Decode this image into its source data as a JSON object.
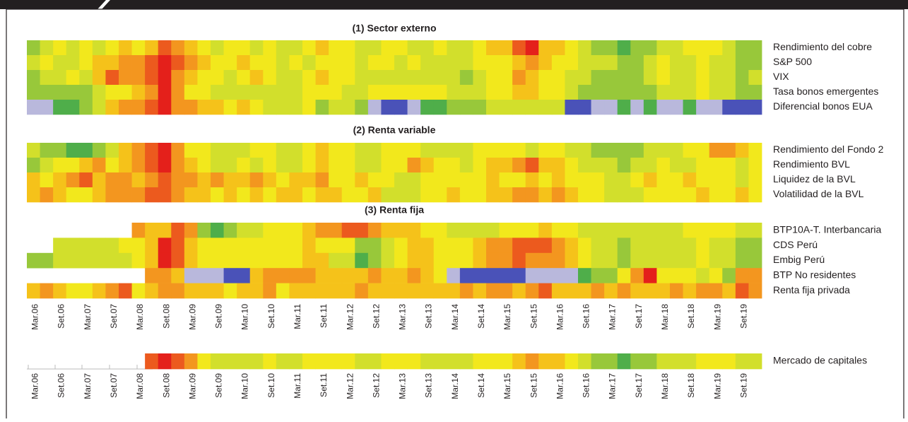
{
  "chart_data": {
    "type": "heatmap",
    "colors": [
      "#4a52b8",
      "#b9b8dc",
      "#4fae4a",
      "#98c83a",
      "#d2df2c",
      "#f2e81c",
      "#f5c21a",
      "#f3961f",
      "#ec5a1e",
      "#e4201b"
    ],
    "xticks": [
      "Mar.06",
      "Set.06",
      "Mar.07",
      "Set.07",
      "Mar.08",
      "Set.08",
      "Mar.09",
      "Set.09",
      "Mar.10",
      "Set.10",
      "Mar.11",
      "Set.11",
      "Mar.12",
      "Set.12",
      "Mar.13",
      "Set.13",
      "Mar.14",
      "Set.14",
      "Mar.15",
      "Set.15",
      "Mar.16",
      "Set.16",
      "Mar.17",
      "Set.17",
      "Mar.18",
      "Set.18",
      "Mar.19",
      "Set.19"
    ],
    "sections": [
      {
        "title": "(1) Sector externo",
        "rows": [
          {
            "name": "Rendimiento del cobre",
            "values": [
              3,
              4,
              5,
              4,
              5,
              4,
              5,
              6,
              5,
              6,
              8,
              7,
              6,
              5,
              4,
              5,
              5,
              4,
              5,
              4,
              4,
              5,
              6,
              5,
              5,
              4,
              4,
              5,
              5,
              4,
              4,
              5,
              4,
              4,
              5,
              6,
              6,
              8,
              9,
              6,
              6,
              5,
              4,
              3,
              3,
              2,
              3,
              3,
              4,
              4,
              5,
              5,
              5,
              4,
              3,
              3
            ]
          },
          {
            "name": "S&P 500",
            "values": [
              4,
              5,
              4,
              4,
              5,
              6,
              6,
              7,
              7,
              8,
              9,
              8,
              7,
              6,
              5,
              5,
              6,
              5,
              5,
              4,
              5,
              4,
              5,
              5,
              5,
              4,
              5,
              5,
              4,
              5,
              4,
              4,
              4,
              4,
              5,
              5,
              5,
              6,
              7,
              6,
              5,
              5,
              4,
              4,
              4,
              3,
              3,
              4,
              5,
              4,
              4,
              5,
              4,
              4,
              3,
              3
            ]
          },
          {
            "name": "VIX",
            "values": [
              3,
              4,
              4,
              5,
              4,
              6,
              8,
              7,
              7,
              8,
              9,
              7,
              6,
              5,
              5,
              4,
              5,
              6,
              5,
              4,
              4,
              5,
              6,
              5,
              5,
              4,
              4,
              4,
              4,
              4,
              4,
              4,
              4,
              3,
              4,
              5,
              5,
              7,
              6,
              5,
              5,
              4,
              4,
              3,
              3,
              3,
              3,
              4,
              5,
              4,
              4,
              5,
              4,
              4,
              3,
              4
            ]
          },
          {
            "name": "Tasa bonos emergentes",
            "values": [
              3,
              3,
              3,
              3,
              3,
              4,
              5,
              5,
              6,
              7,
              9,
              7,
              5,
              5,
              4,
              4,
              4,
              4,
              4,
              4,
              4,
              5,
              5,
              5,
              4,
              4,
              5,
              5,
              5,
              5,
              5,
              5,
              4,
              4,
              4,
              5,
              5,
              6,
              6,
              5,
              5,
              4,
              3,
              3,
              3,
              3,
              3,
              3,
              4,
              4,
              4,
              5,
              4,
              4,
              3,
              3
            ]
          },
          {
            "name": "Diferencial bonos EUA",
            "values": [
              1,
              1,
              2,
              2,
              3,
              4,
              6,
              7,
              7,
              8,
              9,
              7,
              7,
              6,
              6,
              5,
              6,
              5,
              4,
              4,
              4,
              5,
              3,
              4,
              4,
              3,
              1,
              0,
              0,
              1,
              2,
              2,
              3,
              3,
              3,
              4,
              4,
              4,
              4,
              4,
              4,
              0,
              0,
              1,
              1,
              2,
              1,
              2,
              1,
              1,
              2,
              1,
              1,
              0,
              0,
              0
            ]
          }
        ]
      },
      {
        "title": "(2) Renta variable",
        "rows": [
          {
            "name": "Rendimiento del Fondo 2",
            "values": [
              4,
              3,
              3,
              2,
              2,
              3,
              4,
              6,
              7,
              8,
              9,
              7,
              5,
              5,
              4,
              4,
              4,
              5,
              5,
              4,
              4,
              5,
              6,
              5,
              5,
              4,
              4,
              5,
              5,
              5,
              4,
              4,
              4,
              4,
              5,
              5,
              5,
              5,
              4,
              5,
              5,
              4,
              4,
              3,
              3,
              3,
              3,
              4,
              4,
              4,
              5,
              5,
              7,
              7,
              6,
              5
            ]
          },
          {
            "name": "Rendimiento BVL",
            "values": [
              3,
              4,
              5,
              5,
              6,
              7,
              5,
              6,
              7,
              8,
              9,
              7,
              6,
              5,
              4,
              4,
              5,
              4,
              5,
              4,
              4,
              5,
              6,
              5,
              5,
              4,
              4,
              5,
              5,
              7,
              6,
              5,
              5,
              4,
              5,
              6,
              6,
              7,
              8,
              6,
              6,
              5,
              4,
              4,
              4,
              3,
              4,
              4,
              5,
              4,
              4,
              5,
              5,
              5,
              4,
              5
            ]
          },
          {
            "name": "Liquidez de la BVL",
            "values": [
              6,
              5,
              6,
              7,
              8,
              6,
              7,
              7,
              6,
              7,
              8,
              7,
              7,
              6,
              7,
              6,
              6,
              7,
              6,
              5,
              6,
              6,
              7,
              5,
              5,
              6,
              5,
              5,
              4,
              4,
              5,
              5,
              5,
              5,
              5,
              6,
              5,
              5,
              6,
              5,
              6,
              5,
              5,
              5,
              4,
              4,
              5,
              6,
              5,
              5,
              6,
              5,
              5,
              5,
              4,
              5
            ]
          },
          {
            "name": "Volatilidad de la BVL",
            "values": [
              6,
              7,
              6,
              5,
              5,
              6,
              7,
              7,
              7,
              8,
              8,
              7,
              6,
              6,
              5,
              6,
              5,
              6,
              5,
              6,
              6,
              5,
              6,
              6,
              5,
              5,
              6,
              4,
              4,
              4,
              5,
              5,
              6,
              5,
              5,
              6,
              6,
              7,
              7,
              6,
              7,
              6,
              5,
              5,
              4,
              4,
              4,
              5,
              5,
              5,
              5,
              6,
              5,
              5,
              6,
              5
            ]
          }
        ]
      },
      {
        "title": "(3) Renta fija",
        "rows": [
          {
            "name": "BTP10A-T. Interbancaria",
            "values": [
              null,
              null,
              null,
              null,
              null,
              null,
              null,
              null,
              7,
              6,
              6,
              8,
              7,
              3,
              2,
              3,
              4,
              4,
              5,
              5,
              5,
              6,
              7,
              7,
              8,
              8,
              7,
              6,
              6,
              6,
              5,
              5,
              4,
              4,
              4,
              4,
              5,
              5,
              5,
              6,
              5,
              5,
              4,
              4,
              4,
              4,
              4,
              4,
              4,
              4,
              5,
              5,
              5,
              5,
              4,
              4
            ]
          },
          {
            "name": "CDS Perú",
            "values": [
              null,
              null,
              4,
              4,
              4,
              4,
              4,
              5,
              5,
              6,
              9,
              8,
              6,
              5,
              5,
              5,
              5,
              5,
              5,
              5,
              5,
              6,
              5,
              5,
              5,
              3,
              3,
              4,
              5,
              6,
              6,
              5,
              5,
              5,
              6,
              7,
              7,
              8,
              8,
              8,
              7,
              6,
              5,
              4,
              4,
              3,
              4,
              4,
              4,
              4,
              4,
              5,
              4,
              4,
              3,
              3
            ]
          },
          {
            "name": "Embig Perú",
            "values": [
              3,
              3,
              4,
              4,
              4,
              4,
              4,
              4,
              5,
              6,
              9,
              8,
              6,
              5,
              5,
              5,
              5,
              5,
              5,
              5,
              5,
              6,
              6,
              4,
              4,
              2,
              3,
              4,
              5,
              6,
              6,
              5,
              5,
              5,
              6,
              7,
              7,
              8,
              7,
              7,
              7,
              6,
              5,
              4,
              4,
              3,
              4,
              4,
              4,
              4,
              4,
              5,
              4,
              4,
              3,
              3
            ]
          },
          {
            "name": "BTP No residentes",
            "values": [
              null,
              null,
              null,
              null,
              null,
              null,
              null,
              null,
              null,
              7,
              7,
              6,
              1,
              1,
              1,
              0,
              0,
              6,
              7,
              7,
              7,
              7,
              6,
              6,
              6,
              6,
              7,
              6,
              6,
              7,
              6,
              5,
              1,
              0,
              0,
              0,
              0,
              0,
              1,
              1,
              1,
              1,
              2,
              3,
              3,
              5,
              7,
              9,
              5,
              5,
              5,
              4,
              5,
              3,
              7,
              7
            ]
          },
          {
            "name": "Renta fija privada",
            "values": [
              6,
              7,
              6,
              5,
              5,
              6,
              7,
              8,
              5,
              6,
              7,
              7,
              6,
              6,
              6,
              5,
              6,
              6,
              7,
              5,
              6,
              6,
              6,
              6,
              6,
              7,
              6,
              6,
              6,
              6,
              6,
              6,
              6,
              7,
              6,
              7,
              7,
              6,
              7,
              8,
              6,
              6,
              6,
              7,
              6,
              7,
              6,
              6,
              6,
              7,
              6,
              7,
              7,
              6,
              8,
              7
            ]
          }
        ]
      },
      {
        "rows": [
          {
            "name": "Mercado de capitales",
            "values": [
              null,
              null,
              null,
              null,
              null,
              null,
              null,
              null,
              null,
              8,
              9,
              8,
              7,
              5,
              4,
              4,
              4,
              4,
              5,
              4,
              4,
              5,
              5,
              5,
              5,
              4,
              4,
              5,
              5,
              5,
              4,
              4,
              4,
              4,
              5,
              5,
              5,
              6,
              7,
              6,
              6,
              5,
              4,
              3,
              3,
              2,
              3,
              3,
              4,
              4,
              4,
              5,
              5,
              5,
              4,
              4
            ]
          }
        ]
      }
    ]
  }
}
